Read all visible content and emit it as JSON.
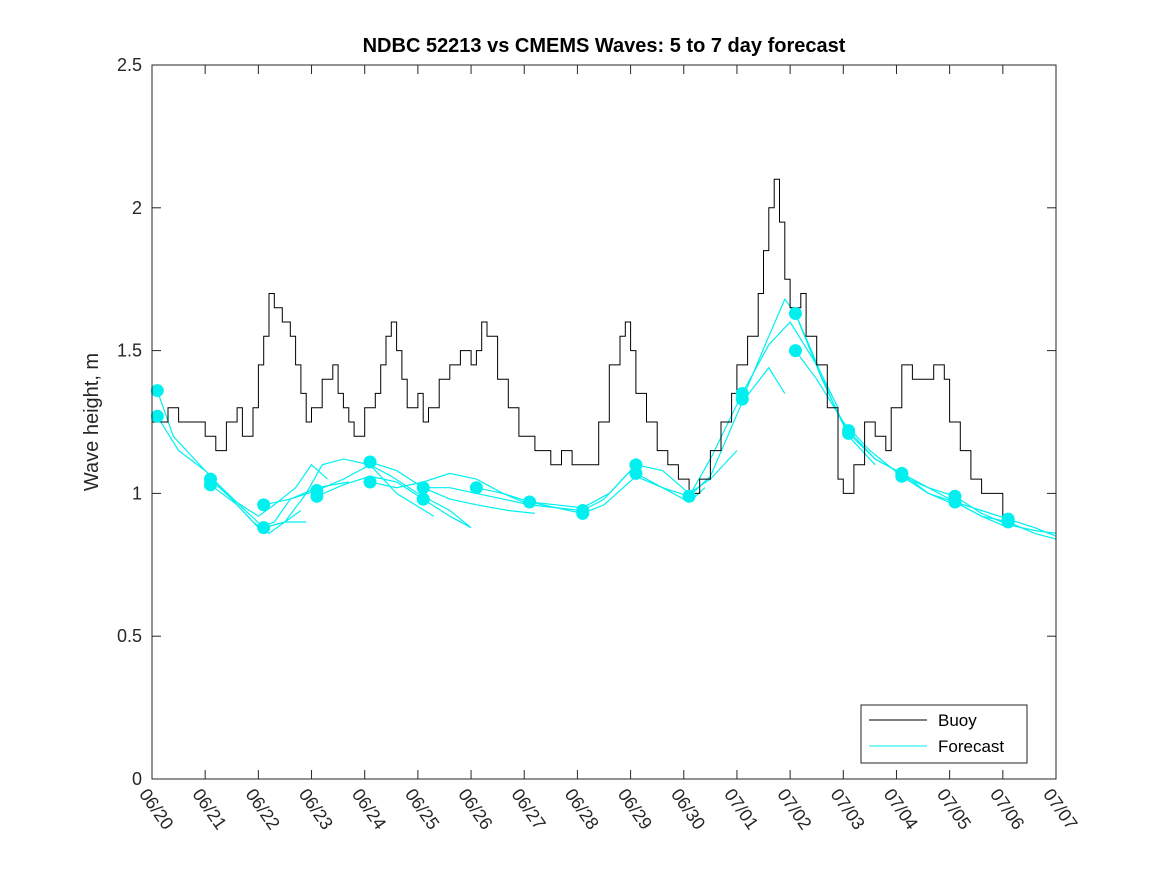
{
  "chart_data": {
    "type": "line",
    "title": "NDBC 52213 vs CMEMS Waves: 5 to 7 day forecast",
    "xlabel": "",
    "ylabel": "Wave height, m",
    "ylim": [
      0,
      2.5
    ],
    "xlim_days": [
      0,
      17
    ],
    "x_tick_labels": [
      "06/20",
      "06/21",
      "06/22",
      "06/23",
      "06/24",
      "06/25",
      "06/26",
      "06/27",
      "06/28",
      "06/29",
      "06/30",
      "07/01",
      "07/02",
      "07/03",
      "07/04",
      "07/05",
      "07/06",
      "07/07"
    ],
    "y_tick_labels": [
      "0",
      "0.5",
      "1",
      "1.5",
      "2",
      "2.5"
    ],
    "y_ticks": [
      0,
      0.5,
      1,
      1.5,
      2,
      2.5
    ],
    "grid": false,
    "legend_position": "bottom-right",
    "legend": [
      "Buoy",
      "Forecast"
    ],
    "colors": {
      "buoy": "#000000",
      "forecast": "#00f0f0"
    },
    "series": [
      {
        "name": "Buoy",
        "points": [
          [
            0.0,
            1.25
          ],
          [
            0.3,
            1.3
          ],
          [
            0.5,
            1.25
          ],
          [
            0.8,
            1.25
          ],
          [
            1.0,
            1.2
          ],
          [
            1.2,
            1.15
          ],
          [
            1.4,
            1.25
          ],
          [
            1.6,
            1.3
          ],
          [
            1.7,
            1.2
          ],
          [
            1.9,
            1.3
          ],
          [
            2.0,
            1.45
          ],
          [
            2.1,
            1.55
          ],
          [
            2.2,
            1.7
          ],
          [
            2.3,
            1.65
          ],
          [
            2.45,
            1.6
          ],
          [
            2.6,
            1.55
          ],
          [
            2.7,
            1.45
          ],
          [
            2.8,
            1.35
          ],
          [
            2.9,
            1.25
          ],
          [
            3.0,
            1.3
          ],
          [
            3.2,
            1.4
          ],
          [
            3.4,
            1.45
          ],
          [
            3.5,
            1.35
          ],
          [
            3.6,
            1.3
          ],
          [
            3.7,
            1.25
          ],
          [
            3.8,
            1.2
          ],
          [
            4.0,
            1.3
          ],
          [
            4.2,
            1.35
          ],
          [
            4.3,
            1.45
          ],
          [
            4.4,
            1.55
          ],
          [
            4.5,
            1.6
          ],
          [
            4.6,
            1.5
          ],
          [
            4.7,
            1.4
          ],
          [
            4.8,
            1.3
          ],
          [
            5.0,
            1.35
          ],
          [
            5.1,
            1.25
          ],
          [
            5.2,
            1.3
          ],
          [
            5.4,
            1.4
          ],
          [
            5.6,
            1.45
          ],
          [
            5.8,
            1.5
          ],
          [
            6.0,
            1.45
          ],
          [
            6.1,
            1.5
          ],
          [
            6.2,
            1.6
          ],
          [
            6.3,
            1.55
          ],
          [
            6.5,
            1.4
          ],
          [
            6.7,
            1.3
          ],
          [
            6.9,
            1.2
          ],
          [
            7.2,
            1.15
          ],
          [
            7.5,
            1.1
          ],
          [
            7.7,
            1.15
          ],
          [
            7.9,
            1.1
          ],
          [
            8.2,
            1.1
          ],
          [
            8.4,
            1.25
          ],
          [
            8.6,
            1.45
          ],
          [
            8.8,
            1.55
          ],
          [
            8.9,
            1.6
          ],
          [
            9.0,
            1.5
          ],
          [
            9.1,
            1.35
          ],
          [
            9.3,
            1.25
          ],
          [
            9.5,
            1.15
          ],
          [
            9.7,
            1.1
          ],
          [
            9.9,
            1.05
          ],
          [
            10.1,
            1.0
          ],
          [
            10.3,
            1.05
          ],
          [
            10.5,
            1.15
          ],
          [
            10.7,
            1.25
          ],
          [
            10.9,
            1.35
          ],
          [
            11.0,
            1.45
          ],
          [
            11.2,
            1.55
          ],
          [
            11.4,
            1.7
          ],
          [
            11.5,
            1.85
          ],
          [
            11.6,
            2.0
          ],
          [
            11.7,
            2.1
          ],
          [
            11.8,
            1.95
          ],
          [
            11.9,
            1.75
          ],
          [
            12.0,
            1.65
          ],
          [
            12.1,
            1.65
          ],
          [
            12.2,
            1.7
          ],
          [
            12.3,
            1.55
          ],
          [
            12.5,
            1.45
          ],
          [
            12.7,
            1.3
          ],
          [
            12.9,
            1.05
          ],
          [
            13.0,
            1.0
          ],
          [
            13.2,
            1.1
          ],
          [
            13.4,
            1.25
          ],
          [
            13.6,
            1.2
          ],
          [
            13.8,
            1.15
          ],
          [
            13.9,
            1.3
          ],
          [
            14.1,
            1.45
          ],
          [
            14.3,
            1.4
          ],
          [
            14.5,
            1.4
          ],
          [
            14.7,
            1.45
          ],
          [
            14.9,
            1.4
          ],
          [
            15.0,
            1.25
          ],
          [
            15.2,
            1.15
          ],
          [
            15.4,
            1.05
          ],
          [
            15.6,
            1.0
          ],
          [
            15.8,
            1.0
          ],
          [
            16.0,
            0.9
          ]
        ]
      },
      {
        "name": "Forecast",
        "runs": [
          [
            [
              0.1,
              1.36
            ],
            [
              0.4,
              1.2
            ],
            [
              0.8,
              1.12
            ],
            [
              1.2,
              1.04
            ],
            [
              1.7,
              0.95
            ],
            [
              2.1,
              0.88
            ],
            [
              2.5,
              0.9
            ],
            [
              2.9,
              0.9
            ]
          ],
          [
            [
              0.1,
              1.27
            ],
            [
              0.5,
              1.15
            ],
            [
              1.0,
              1.08
            ],
            [
              1.5,
              0.98
            ],
            [
              1.9,
              0.9
            ],
            [
              2.2,
              0.86
            ],
            [
              2.8,
              0.94
            ]
          ],
          [
            [
              1.1,
              1.05
            ],
            [
              1.5,
              0.98
            ],
            [
              2.0,
              0.92
            ],
            [
              2.3,
              0.96
            ],
            [
              2.7,
              1.02
            ],
            [
              3.0,
              1.1
            ],
            [
              3.3,
              1.05
            ]
          ],
          [
            [
              1.1,
              1.03
            ],
            [
              1.6,
              0.96
            ],
            [
              2.0,
              0.88
            ],
            [
              2.3,
              0.9
            ],
            [
              2.6,
              0.98
            ],
            [
              3.1,
              1.02
            ],
            [
              3.7,
              1.04
            ]
          ],
          [
            [
              2.1,
              0.96
            ],
            [
              2.6,
              0.98
            ],
            [
              3.1,
              1.01
            ],
            [
              3.6,
              1.05
            ],
            [
              4.1,
              1.1
            ],
            [
              4.5,
              1.06
            ],
            [
              5.0,
              1.0
            ],
            [
              5.6,
              0.94
            ],
            [
              6.0,
              0.88
            ]
          ],
          [
            [
              2.1,
              0.88
            ],
            [
              2.5,
              0.9
            ],
            [
              2.9,
              1.0
            ],
            [
              3.2,
              1.1
            ],
            [
              3.6,
              1.12
            ],
            [
              4.1,
              1.1
            ],
            [
              4.6,
              1.0
            ],
            [
              5.3,
              0.92
            ]
          ],
          [
            [
              3.1,
              0.99
            ],
            [
              3.6,
              1.03
            ],
            [
              4.1,
              1.06
            ],
            [
              4.6,
              1.04
            ],
            [
              5.1,
              0.98
            ],
            [
              5.6,
              0.92
            ],
            [
              6.0,
              0.88
            ]
          ],
          [
            [
              4.1,
              1.11
            ],
            [
              4.6,
              1.08
            ],
            [
              5.1,
              1.02
            ],
            [
              5.6,
              0.98
            ],
            [
              6.1,
              0.96
            ],
            [
              6.7,
              0.94
            ],
            [
              7.2,
              0.93
            ]
          ],
          [
            [
              4.1,
              1.04
            ],
            [
              4.6,
              1.02
            ],
            [
              5.1,
              1.04
            ],
            [
              5.6,
              1.07
            ],
            [
              6.1,
              1.05
            ],
            [
              6.6,
              1.0
            ],
            [
              7.1,
              0.96
            ],
            [
              7.6,
              0.95
            ],
            [
              8.1,
              0.93
            ]
          ],
          [
            [
              5.1,
              1.02
            ],
            [
              5.6,
              1.02
            ],
            [
              6.1,
              1.0
            ],
            [
              6.6,
              0.98
            ],
            [
              7.1,
              0.96
            ],
            [
              7.6,
              0.95
            ],
            [
              8.1,
              0.94
            ]
          ],
          [
            [
              6.1,
              1.02
            ],
            [
              6.6,
              1.0
            ],
            [
              7.1,
              0.97
            ],
            [
              7.6,
              0.96
            ],
            [
              8.1,
              0.95
            ],
            [
              8.6,
              1.0
            ],
            [
              9.1,
              1.1
            ]
          ],
          [
            [
              7.1,
              0.97
            ],
            [
              7.6,
              0.95
            ],
            [
              8.1,
              0.93
            ],
            [
              8.5,
              0.96
            ],
            [
              9.1,
              1.06
            ],
            [
              9.6,
              1.02
            ],
            [
              10.1,
              0.97
            ],
            [
              10.4,
              1.02
            ]
          ],
          [
            [
              8.1,
              0.94
            ],
            [
              8.5,
              0.98
            ],
            [
              9.1,
              1.1
            ],
            [
              9.6,
              1.08
            ],
            [
              10.1,
              1.0
            ],
            [
              10.5,
              1.05
            ],
            [
              11.0,
              1.15
            ]
          ],
          [
            [
              9.1,
              1.07
            ],
            [
              9.6,
              1.02
            ],
            [
              10.1,
              0.99
            ],
            [
              10.5,
              1.06
            ],
            [
              11.1,
              1.32
            ],
            [
              11.6,
              1.44
            ],
            [
              11.9,
              1.35
            ]
          ],
          [
            [
              10.1,
              0.99
            ],
            [
              10.5,
              1.12
            ],
            [
              11.1,
              1.35
            ],
            [
              11.6,
              1.52
            ],
            [
              12.0,
              1.6
            ],
            [
              12.5,
              1.45
            ],
            [
              12.9,
              1.3
            ]
          ],
          [
            [
              11.1,
              1.33
            ],
            [
              11.6,
              1.55
            ],
            [
              11.9,
              1.68
            ],
            [
              12.1,
              1.63
            ],
            [
              12.6,
              1.4
            ],
            [
              13.1,
              1.2
            ],
            [
              13.6,
              1.1
            ]
          ],
          [
            [
              12.1,
              1.63
            ],
            [
              12.4,
              1.5
            ],
            [
              12.8,
              1.32
            ],
            [
              13.1,
              1.21
            ],
            [
              13.6,
              1.12
            ],
            [
              14.1,
              1.07
            ],
            [
              14.6,
              1.0
            ],
            [
              15.1,
              0.96
            ]
          ],
          [
            [
              12.1,
              1.5
            ],
            [
              12.5,
              1.4
            ],
            [
              13.0,
              1.25
            ],
            [
              13.5,
              1.15
            ],
            [
              14.1,
              1.06
            ],
            [
              14.6,
              1.0
            ],
            [
              15.1,
              0.97
            ],
            [
              15.6,
              0.92
            ],
            [
              16.1,
              0.88
            ]
          ],
          [
            [
              13.1,
              1.22
            ],
            [
              13.6,
              1.12
            ],
            [
              14.1,
              1.07
            ],
            [
              14.6,
              1.02
            ],
            [
              15.1,
              0.99
            ],
            [
              15.6,
              0.93
            ],
            [
              16.1,
              0.89
            ],
            [
              16.6,
              0.87
            ],
            [
              17.0,
              0.86
            ]
          ],
          [
            [
              14.1,
              1.06
            ],
            [
              14.6,
              1.02
            ],
            [
              15.1,
              0.97
            ],
            [
              15.6,
              0.92
            ],
            [
              16.1,
              0.9
            ],
            [
              16.6,
              0.86
            ],
            [
              17.0,
              0.84
            ]
          ],
          [
            [
              15.1,
              0.97
            ],
            [
              15.6,
              0.94
            ],
            [
              16.1,
              0.91
            ],
            [
              16.6,
              0.88
            ],
            [
              17.0,
              0.85
            ]
          ]
        ],
        "markers": [
          [
            0.1,
            1.36
          ],
          [
            0.1,
            1.27
          ],
          [
            1.1,
            1.05
          ],
          [
            1.1,
            1.03
          ],
          [
            2.1,
            0.96
          ],
          [
            2.1,
            0.88
          ],
          [
            3.1,
            1.01
          ],
          [
            3.1,
            0.99
          ],
          [
            4.1,
            1.11
          ],
          [
            4.1,
            1.04
          ],
          [
            5.1,
            1.02
          ],
          [
            5.1,
            0.98
          ],
          [
            6.1,
            1.02
          ],
          [
            7.1,
            0.97
          ],
          [
            8.1,
            0.94
          ],
          [
            8.1,
            0.93
          ],
          [
            9.1,
            1.1
          ],
          [
            9.1,
            1.07
          ],
          [
            10.1,
            0.99
          ],
          [
            11.1,
            1.35
          ],
          [
            11.1,
            1.33
          ],
          [
            12.1,
            1.63
          ],
          [
            12.1,
            1.5
          ],
          [
            13.1,
            1.22
          ],
          [
            13.1,
            1.21
          ],
          [
            14.1,
            1.07
          ],
          [
            14.1,
            1.06
          ],
          [
            15.1,
            0.99
          ],
          [
            15.1,
            0.97
          ],
          [
            16.1,
            0.91
          ],
          [
            16.1,
            0.9
          ]
        ]
      }
    ]
  }
}
